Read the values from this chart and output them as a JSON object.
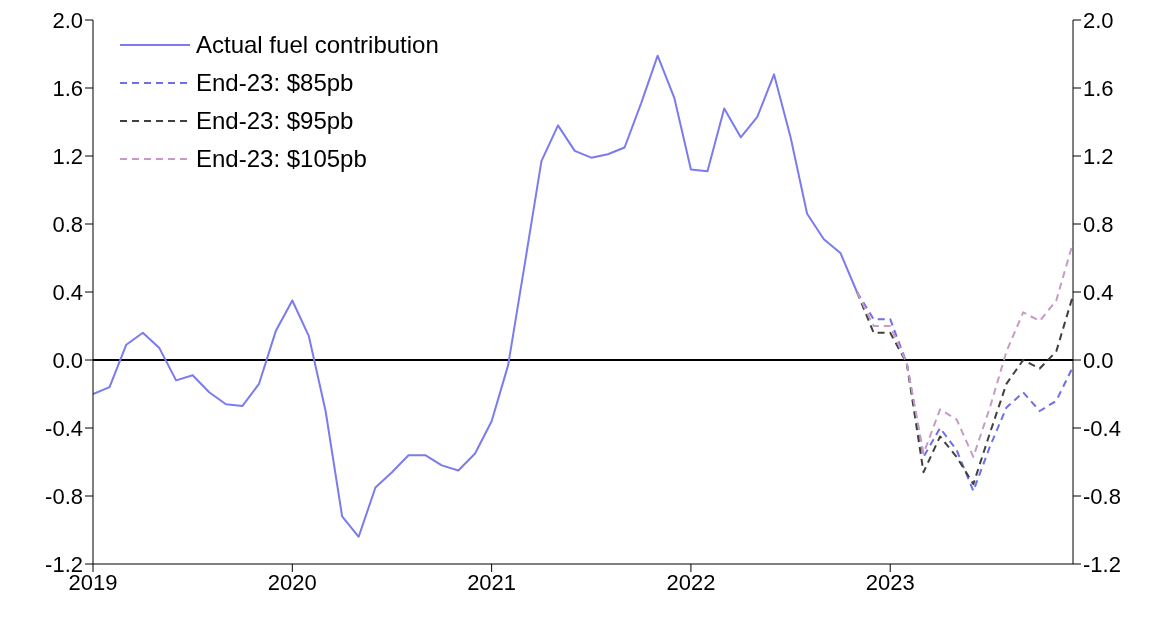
{
  "chart_data": {
    "type": "line",
    "legend": "top left",
    "grid": false,
    "marker": "none",
    "xlim": [
      2019,
      2023.917
    ],
    "xticks": [
      2019,
      2020,
      2021,
      2022,
      2023
    ],
    "ylim": [
      -1.2,
      2.0
    ],
    "yticks": [
      {
        "value": -1.2,
        "label": "-1.2"
      },
      {
        "value": -0.8,
        "label": "-0.8"
      },
      {
        "value": -0.4,
        "label": "-0.4"
      },
      {
        "value": 0,
        "label": "0.0"
      },
      {
        "value": 0.4,
        "label": "0.4"
      },
      {
        "value": 0.8,
        "label": "0.8"
      },
      {
        "value": 1.2,
        "label": "1.2"
      },
      {
        "value": 1.6,
        "label": "1.6"
      },
      {
        "value": 2,
        "label": "2.0"
      }
    ],
    "y2lim": [
      -1.2,
      2.0
    ],
    "y2ticks": [
      {
        "value": -1.2,
        "label": "-1.2"
      },
      {
        "value": -0.8,
        "label": "-0.8"
      },
      {
        "value": -0.4,
        "label": "-0.4"
      },
      {
        "value": 0,
        "label": "0.0"
      },
      {
        "value": 0.4,
        "label": "0.4"
      },
      {
        "value": 0.8,
        "label": "0.8"
      },
      {
        "value": 1.2,
        "label": "1.2"
      },
      {
        "value": 1.6,
        "label": "1.6"
      },
      {
        "value": 2,
        "label": "2.0"
      }
    ],
    "ref_lines": [
      {
        "axis": "y",
        "value": 0,
        "color": "#000000"
      }
    ],
    "series": [
      {
        "name": "Actual fuel contribution",
        "color": "#7b7bef",
        "line_style": "solid",
        "x": [
          2019,
          2019.083,
          2019.167,
          2019.25,
          2019.333,
          2019.417,
          2019.5,
          2019.583,
          2019.667,
          2019.75,
          2019.833,
          2019.917,
          2020,
          2020.083,
          2020.167,
          2020.25,
          2020.333,
          2020.417,
          2020.5,
          2020.583,
          2020.667,
          2020.75,
          2020.833,
          2020.917,
          2021,
          2021.083,
          2021.167,
          2021.25,
          2021.333,
          2021.417,
          2021.5,
          2021.583,
          2021.667,
          2021.75,
          2021.833,
          2021.917,
          2022,
          2022.083,
          2022.167,
          2022.25,
          2022.333,
          2022.417,
          2022.5,
          2022.583,
          2022.667,
          2022.75,
          2022.833
        ],
        "values": [
          -0.2,
          -0.16,
          0.09,
          0.16,
          0.07,
          -0.12,
          -0.09,
          -0.19,
          -0.26,
          -0.27,
          -0.14,
          0.17,
          0.35,
          0.14,
          -0.3,
          -0.92,
          -1.04,
          -0.75,
          -0.66,
          -0.56,
          -0.56,
          -0.62,
          -0.65,
          -0.55,
          -0.36,
          -0.03,
          0.57,
          1.17,
          1.38,
          1.23,
          1.19,
          1.21,
          1.25,
          1.51,
          1.79,
          1.54,
          1.12,
          1.11,
          1.48,
          1.31,
          1.43,
          1.68,
          1.31,
          0.86,
          0.71,
          0.63,
          0.4
        ]
      },
      {
        "name": "End-23: $85pb",
        "color": "#6f6fe8",
        "line_style": "dashed",
        "x": [
          2022.833,
          2022.917,
          2023,
          2023.083,
          2023.167,
          2023.25,
          2023.333,
          2023.417,
          2023.5,
          2023.583,
          2023.667,
          2023.75,
          2023.833,
          2023.917
        ],
        "values": [
          0.4,
          0.24,
          0.24,
          -0.02,
          -0.57,
          -0.4,
          -0.53,
          -0.77,
          -0.51,
          -0.28,
          -0.19,
          -0.3,
          -0.24,
          -0.04
        ]
      },
      {
        "name": "End-23: $95pb",
        "color": "#404040",
        "line_style": "dashed",
        "x": [
          2022.833,
          2022.917,
          2023,
          2023.083,
          2023.167,
          2023.25,
          2023.333,
          2023.417,
          2023.5,
          2023.583,
          2023.667,
          2023.75,
          2023.833,
          2023.917
        ],
        "values": [
          0.4,
          0.16,
          0.16,
          -0.02,
          -0.66,
          -0.45,
          -0.57,
          -0.73,
          -0.43,
          -0.14,
          0.0,
          -0.05,
          0.05,
          0.38
        ]
      },
      {
        "name": "End-23: $105pb",
        "color": "#c89ac8",
        "line_style": "dashed",
        "x": [
          2022.833,
          2022.917,
          2023,
          2023.083,
          2023.167,
          2023.25,
          2023.333,
          2023.417,
          2023.5,
          2023.583,
          2023.667,
          2023.75,
          2023.833,
          2023.917
        ],
        "values": [
          0.4,
          0.2,
          0.2,
          -0.02,
          -0.55,
          -0.29,
          -0.35,
          -0.57,
          -0.28,
          0.05,
          0.28,
          0.23,
          0.35,
          0.69
        ]
      }
    ]
  }
}
